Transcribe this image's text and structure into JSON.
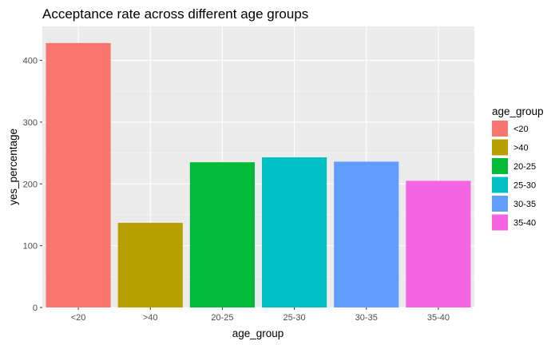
{
  "chart_data": {
    "type": "bar",
    "title": "Acceptance rate across different age groups",
    "xlabel": "age_group",
    "ylabel": "yes_percentage",
    "categories": [
      "<20",
      ">40",
      "20-25",
      "25-30",
      "30-35",
      "35-40"
    ],
    "values": [
      428,
      137,
      235,
      243,
      236,
      205
    ],
    "colors": [
      "#F8766D",
      "#B79F00",
      "#00BA38",
      "#00BFC4",
      "#619CFF",
      "#F564E3"
    ],
    "ylim": [
      0,
      455
    ],
    "yticks": [
      0,
      100,
      200,
      300,
      400
    ],
    "grid": true,
    "panel_background": "#EBEBEB",
    "legend": {
      "title": "age_group",
      "position": "right",
      "entries": [
        "<20",
        ">40",
        "20-25",
        "25-30",
        "30-35",
        "35-40"
      ]
    }
  }
}
